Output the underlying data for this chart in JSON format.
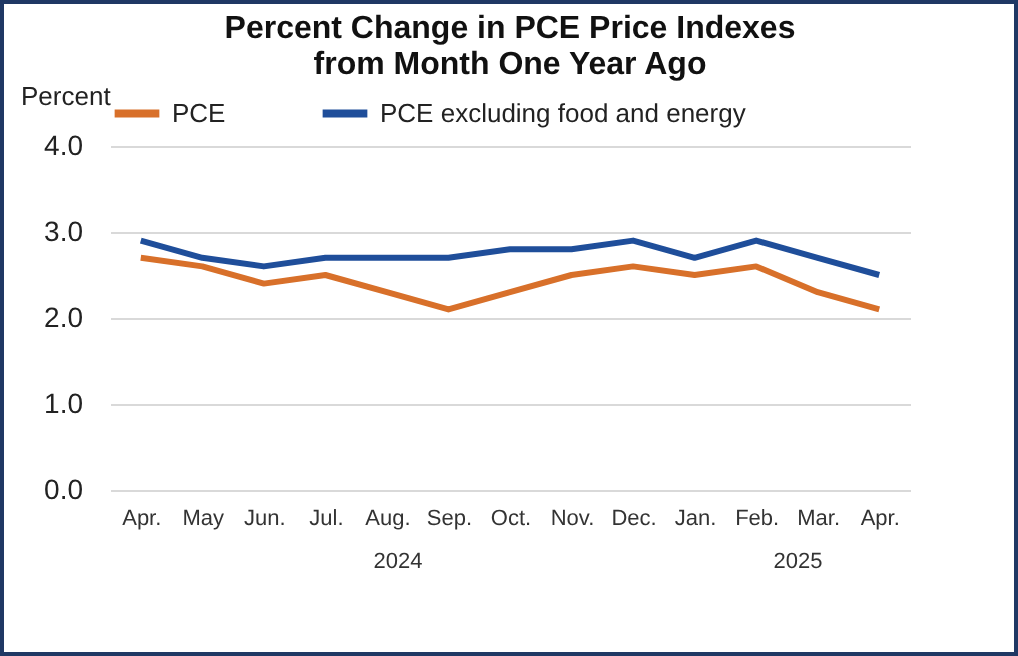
{
  "chart_data": {
    "type": "line",
    "title": "Percent Change in PCE Price Indexes\nfrom Month One Year Ago",
    "ylabel": "Percent",
    "categories": [
      "Apr.",
      "May",
      "Jun.",
      "Jul.",
      "Aug.",
      "Sep.",
      "Oct.",
      "Nov.",
      "Dec.",
      "Jan.",
      "Feb.",
      "Mar.",
      "Apr."
    ],
    "series": [
      {
        "name": "PCE",
        "color": "#d8702a",
        "values": [
          2.7,
          2.6,
          2.4,
          2.5,
          2.3,
          2.1,
          2.3,
          2.5,
          2.6,
          2.5,
          2.6,
          2.3,
          2.1
        ]
      },
      {
        "name": "PCE excluding food and energy",
        "color": "#1f4e9a",
        "values": [
          2.9,
          2.7,
          2.6,
          2.7,
          2.7,
          2.7,
          2.8,
          2.8,
          2.9,
          2.7,
          2.9,
          2.7,
          2.5
        ]
      }
    ],
    "ylim": [
      0,
      4
    ],
    "yticks": [
      {
        "value": 0,
        "label": "0.0"
      },
      {
        "value": 1,
        "label": "1.0"
      },
      {
        "value": 2,
        "label": "2.0"
      },
      {
        "value": 3,
        "label": "3.0"
      },
      {
        "value": 4,
        "label": "4.0"
      }
    ],
    "annotations": [
      "2024",
      "2025"
    ],
    "grid": "y",
    "legend": "top",
    "marker": "none",
    "line_style": "solid"
  }
}
